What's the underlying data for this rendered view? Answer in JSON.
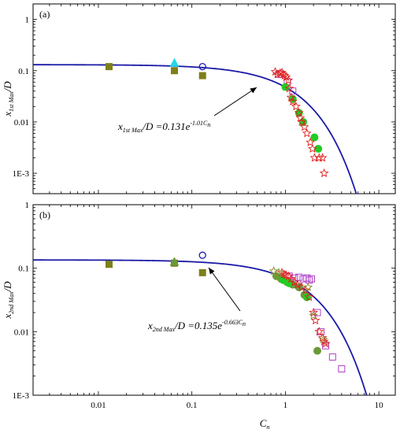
{
  "chart_data": {
    "type": "scatter",
    "x_axis": {
      "label_main": "C",
      "label_sub": "n",
      "scale": "log",
      "range": [
        0.002,
        15
      ],
      "ticks": [
        0.01,
        0.1,
        1,
        10
      ],
      "tick_labels": [
        "0.01",
        "0.1",
        "1",
        "10"
      ]
    },
    "panels": [
      {
        "id": "a",
        "panel_label": "(a)",
        "ylabel_main": "x",
        "ylabel_sub": "1st Max",
        "ylabel_rest": "/D",
        "y_scale": "log",
        "ylim": [
          0.0004,
          2
        ],
        "yticks": [
          1,
          0.1,
          0.01,
          0.001
        ],
        "ytick_labels": [
          "1",
          "0.1",
          "0.01",
          "1E-3"
        ],
        "fit": {
          "a": 0.131,
          "b": 1.01,
          "color": "#1a1aa8"
        },
        "equation": {
          "lhs_main": "x",
          "lhs_sub": "1st Max",
          "lhs_rest": "/D =0.131e",
          "exp_main": "-1.01C",
          "exp_sub": "n"
        },
        "series": [
          {
            "marker": "square-filled",
            "color": "#7f7f1a",
            "points": [
              [
                0.013,
                0.12
              ],
              [
                0.065,
                0.1
              ],
              [
                0.13,
                0.08
              ]
            ]
          },
          {
            "marker": "triangle-filled",
            "color": "#22d8e8",
            "points": [
              [
                0.065,
                0.14
              ]
            ]
          },
          {
            "marker": "circle-open",
            "color": "#1a1ab4",
            "points": [
              [
                0.13,
                0.12
              ]
            ]
          },
          {
            "marker": "square-open",
            "color": "#b040c8",
            "points": [
              [
                0.85,
                0.085
              ],
              [
                1.05,
                0.06
              ],
              [
                1.2,
                0.04
              ]
            ]
          },
          {
            "marker": "circle-filled",
            "color": "#22cc22",
            "points": [
              [
                1.0,
                0.048
              ],
              [
                1.2,
                0.028
              ],
              [
                1.4,
                0.015
              ],
              [
                1.55,
                0.01
              ],
              [
                2.05,
                0.005
              ],
              [
                2.25,
                0.003
              ]
            ]
          },
          {
            "marker": "star-open",
            "color": "#e02020",
            "points": [
              [
                0.78,
                0.095
              ],
              [
                0.82,
                0.085
              ],
              [
                0.88,
                0.09
              ],
              [
                0.92,
                0.092
              ],
              [
                0.95,
                0.085
              ],
              [
                0.98,
                0.08
              ],
              [
                1.02,
                0.075
              ],
              [
                1.08,
                0.065
              ],
              [
                1.1,
                0.045
              ],
              [
                1.15,
                0.03
              ],
              [
                1.2,
                0.025
              ],
              [
                1.3,
                0.02
              ],
              [
                1.4,
                0.015
              ],
              [
                1.45,
                0.012
              ],
              [
                1.5,
                0.01
              ],
              [
                1.6,
                0.008
              ],
              [
                1.7,
                0.006
              ],
              [
                1.85,
                0.004
              ],
              [
                1.95,
                0.003
              ],
              [
                2.05,
                0.002
              ],
              [
                2.3,
                0.002
              ],
              [
                2.5,
                0.002
              ],
              [
                2.6,
                0.001
              ]
            ]
          }
        ]
      },
      {
        "id": "b",
        "panel_label": "(b)",
        "ylabel_main": "x",
        "ylabel_sub": "2nd Max",
        "ylabel_rest": "/D",
        "y_scale": "log",
        "ylim": [
          0.001,
          1
        ],
        "yticks": [
          1,
          0.1,
          0.01,
          0.001
        ],
        "ytick_labels": [
          "1",
          "0.1",
          "0.01",
          "1E-3"
        ],
        "fit": {
          "a": 0.135,
          "b": 0.663,
          "color": "#1a1aa8"
        },
        "equation": {
          "lhs_main": "x",
          "lhs_sub": "2nd Max",
          "lhs_rest": "/D =0.135e",
          "exp_main": "-0.663C",
          "exp_sub": "n"
        },
        "series": [
          {
            "marker": "square-filled",
            "color": "#7f7f1a",
            "points": [
              [
                0.013,
                0.115
              ],
              [
                0.065,
                0.12
              ],
              [
                0.13,
                0.085
              ]
            ]
          },
          {
            "marker": "triangle-filled",
            "color": "#6a9a3a",
            "points": [
              [
                0.065,
                0.125
              ]
            ]
          },
          {
            "marker": "circle-open",
            "color": "#1a1ab4",
            "points": [
              [
                0.13,
                0.16
              ]
            ]
          },
          {
            "marker": "square-open",
            "color": "#b040c8",
            "points": [
              [
                1.1,
                0.075
              ],
              [
                1.25,
                0.07
              ],
              [
                1.4,
                0.072
              ],
              [
                1.55,
                0.068
              ],
              [
                1.7,
                0.07
              ],
              [
                1.8,
                0.065
              ],
              [
                1.9,
                0.068
              ],
              [
                2.2,
                0.02
              ],
              [
                2.4,
                0.01
              ],
              [
                2.7,
                0.006
              ],
              [
                3.2,
                0.004
              ],
              [
                4.0,
                0.0026
              ]
            ]
          },
          {
            "marker": "circle-filled",
            "color": "#6a9a3a",
            "points": [
              [
                0.8,
                0.075
              ],
              [
                0.9,
                0.068
              ],
              [
                1.05,
                0.06
              ],
              [
                1.2,
                0.055
              ],
              [
                1.4,
                0.05
              ],
              [
                1.6,
                0.038
              ],
              [
                2.2,
                0.005
              ]
            ]
          },
          {
            "marker": "circle-filled",
            "color": "#22cc22",
            "points": [
              [
                0.95,
                0.065
              ],
              [
                1.1,
                0.058
              ],
              [
                1.7,
                0.035
              ]
            ]
          },
          {
            "marker": "star-open",
            "color": "#e02020",
            "points": [
              [
                0.92,
                0.085
              ],
              [
                0.97,
                0.08
              ],
              [
                1.02,
                0.078
              ],
              [
                1.08,
                0.075
              ],
              [
                1.15,
                0.068
              ],
              [
                1.25,
                0.06
              ],
              [
                1.35,
                0.055
              ],
              [
                1.5,
                0.05
              ],
              [
                1.65,
                0.045
              ],
              [
                1.8,
                0.035
              ],
              [
                2.0,
                0.02
              ],
              [
                2.1,
                0.015
              ],
              [
                2.3,
                0.01
              ],
              [
                2.5,
                0.008
              ],
              [
                2.6,
                0.007
              ],
              [
                2.7,
                0.0065
              ]
            ]
          },
          {
            "marker": "star-open",
            "color": "#8a8a2a",
            "points": [
              [
                0.75,
                0.09
              ],
              [
                0.85,
                0.085
              ],
              [
                1.75,
                0.05
              ],
              [
                2.0,
                0.018
              ],
              [
                2.55,
                0.0075
              ]
            ]
          }
        ]
      }
    ]
  }
}
